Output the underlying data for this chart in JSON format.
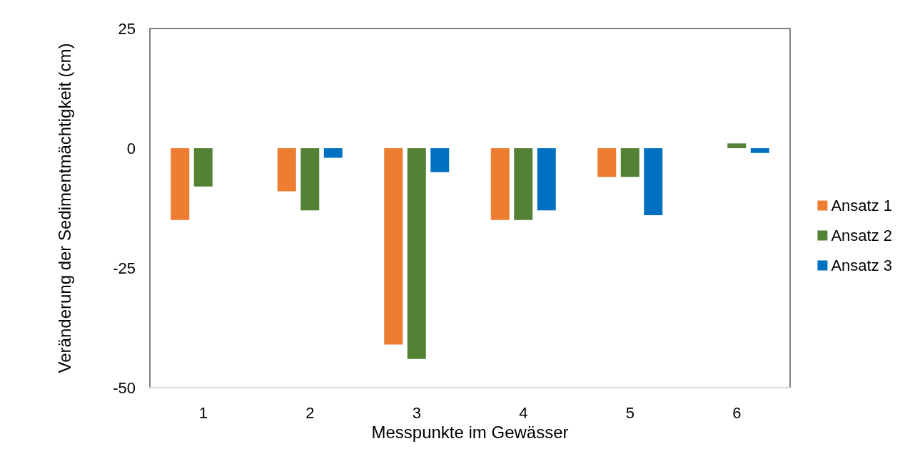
{
  "chart_data": {
    "type": "bar",
    "xlabel": "Messpunkte im Gewässer",
    "ylabel": "Veränderung der Sedimentmächtigkeit (cm)",
    "categories": [
      "1",
      "2",
      "3",
      "4",
      "5",
      "6"
    ],
    "series": [
      {
        "name": "Ansatz 1",
        "color": "#ed7d31",
        "values": [
          -15,
          -9,
          -41,
          -15,
          -6,
          null
        ]
      },
      {
        "name": "Ansatz 2",
        "color": "#548235",
        "values": [
          -8,
          -13,
          -44,
          -15,
          -6,
          1
        ]
      },
      {
        "name": "Ansatz 3",
        "color": "#0070c0",
        "values": [
          null,
          -2,
          -5,
          -13,
          -14,
          -1
        ]
      }
    ],
    "ylim": [
      -50,
      25
    ],
    "yticks": [
      -50,
      -25,
      0,
      25
    ],
    "grid": false,
    "legend": "right"
  }
}
